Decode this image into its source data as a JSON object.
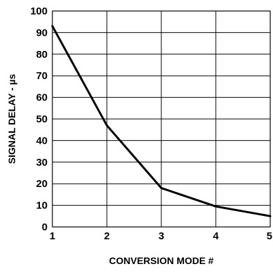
{
  "chart_data": {
    "type": "line",
    "title": "",
    "xlabel": "CONVERSION MODE #",
    "ylabel": "SIGNAL DELAY - µs",
    "xlim": [
      1,
      5
    ],
    "ylim": [
      0,
      100
    ],
    "x_ticks": [
      "1",
      "2",
      "3",
      "4",
      "5"
    ],
    "y_ticks": [
      "0",
      "10",
      "20",
      "30",
      "40",
      "50",
      "60",
      "70",
      "80",
      "90",
      "100"
    ],
    "grid": true,
    "legend": "none",
    "series": [
      {
        "x": [
          1,
          2,
          3,
          4,
          5
        ],
        "y": [
          93,
          47,
          18,
          9.5,
          5
        ]
      }
    ],
    "colors": {
      "line": "#000000",
      "grid": "#000000",
      "background": "#ffffff"
    }
  }
}
